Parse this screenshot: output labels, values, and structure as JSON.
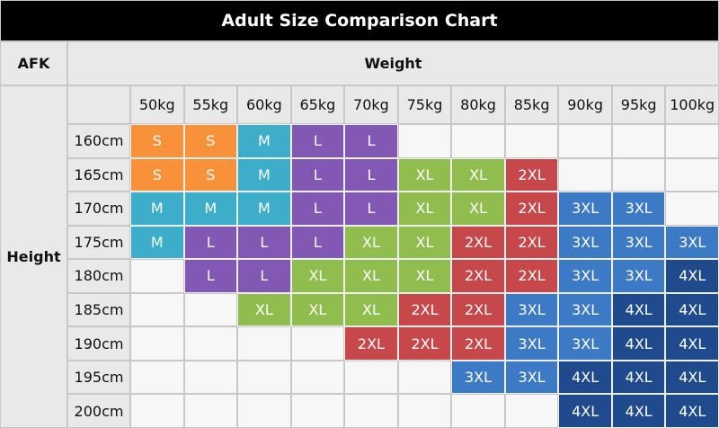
{
  "title": "Adult Size Comparison Chart",
  "corner": "AFK",
  "column_header": "Weight",
  "row_header": "Height",
  "weights": [
    "50kg",
    "55kg",
    "60kg",
    "65kg",
    "70kg",
    "75kg",
    "80kg",
    "85kg",
    "90kg",
    "95kg",
    "100kg"
  ],
  "heights": [
    "160cm",
    "165cm",
    "170cm",
    "175cm",
    "180cm",
    "185cm",
    "190cm",
    "195cm",
    "200cm"
  ],
  "colors": {
    "S": "#f7923a",
    "M": "#3caec9",
    "L": "#8158b4",
    "XL": "#8fbe4e",
    "2XL": "#c7484a",
    "3XL": "#3d7ac6",
    "4XL": "#1f4b8c"
  },
  "rows": [
    [
      "S",
      "S",
      "M",
      "L",
      "L",
      null,
      null,
      null,
      null,
      null,
      null
    ],
    [
      "S",
      "S",
      "M",
      "L",
      "L",
      "XL",
      "XL",
      "2XL",
      null,
      null,
      null
    ],
    [
      "M",
      "M",
      "M",
      "L",
      "L",
      "XL",
      "XL",
      "2XL",
      "3XL",
      "3XL",
      null
    ],
    [
      "M",
      "L",
      "L",
      "L",
      "XL",
      "XL",
      "2XL",
      "2XL",
      "3XL",
      "3XL",
      "3XL"
    ],
    [
      null,
      "L",
      "L",
      "XL",
      "XL",
      "XL",
      "2XL",
      "2XL",
      "3XL",
      "3XL",
      "4XL"
    ],
    [
      null,
      null,
      "XL",
      "XL",
      "XL",
      "2XL",
      "2XL",
      "3XL",
      "3XL",
      "4XL",
      "4XL"
    ],
    [
      null,
      null,
      null,
      null,
      "2XL",
      "2XL",
      "2XL",
      "3XL",
      "3XL",
      "4XL",
      "4XL"
    ],
    [
      null,
      null,
      null,
      null,
      null,
      null,
      "3XL",
      "3XL",
      "4XL",
      "4XL",
      "4XL"
    ],
    [
      null,
      null,
      null,
      null,
      null,
      null,
      null,
      null,
      "4XL",
      "4XL",
      "4XL"
    ]
  ]
}
